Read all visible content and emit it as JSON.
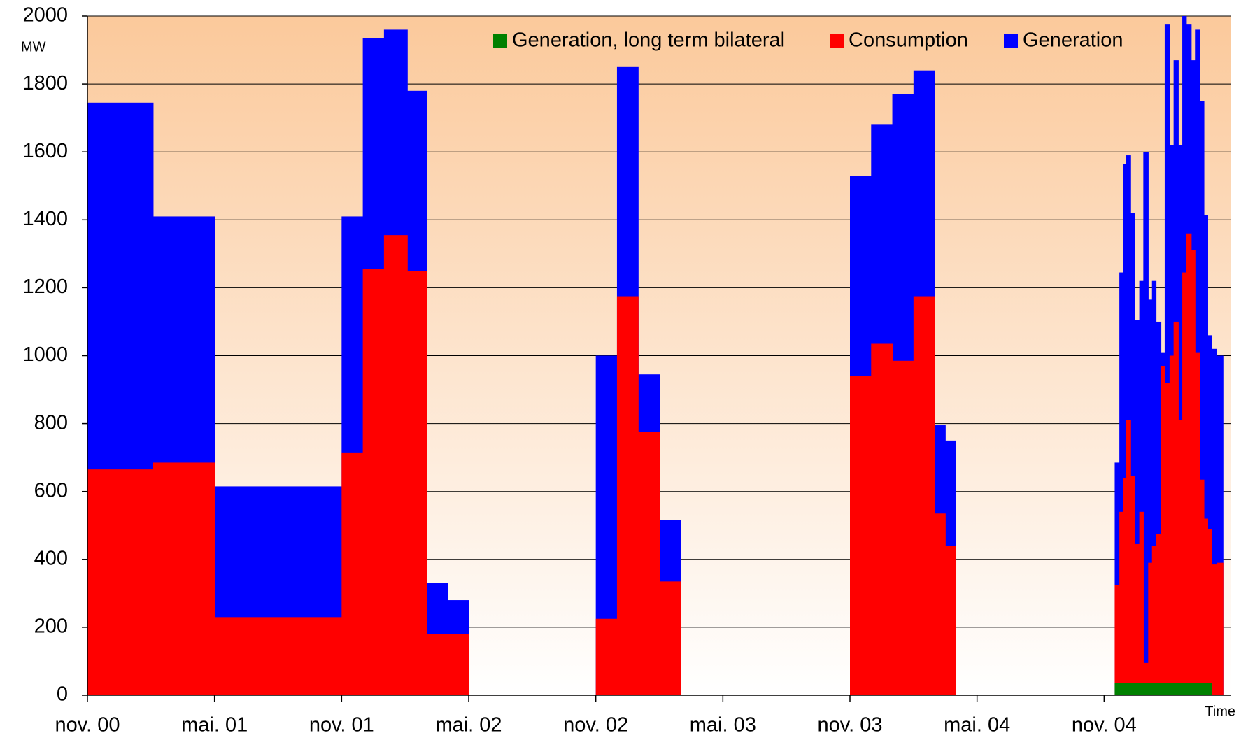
{
  "chart_data": {
    "type": "step-area",
    "y_unit": "MW",
    "x_label": "Time",
    "x": [
      0,
      3.1,
      6,
      12,
      13,
      14,
      15.1,
      16,
      17,
      18,
      24,
      25,
      26,
      27,
      28,
      36,
      37,
      38,
      39,
      40,
      40.5,
      41,
      48.5,
      48.72,
      48.91,
      49.02,
      49.25,
      49.44,
      49.66,
      49.85,
      50.08,
      50.26,
      50.45,
      50.68,
      50.86,
      51.09,
      51.28,
      51.5,
      51.69,
      51.88,
      52.11,
      52.29,
      52.52,
      52.71,
      52.89,
      53.08,
      53.31,
      53.61
    ],
    "series": [
      {
        "name": "Generation",
        "color": "#0000ff",
        "values": [
          1745,
          1410,
          615,
          1410,
          1935,
          1960,
          1780,
          330,
          280,
          null,
          1000,
          1850,
          945,
          515,
          null,
          1530,
          1680,
          1770,
          1840,
          795,
          750,
          null,
          685,
          1245,
          1565,
          1590,
          1420,
          1105,
          1220,
          1600,
          1165,
          1220,
          1100,
          1010,
          1975,
          1620,
          1870,
          1620,
          2000,
          1975,
          1870,
          1960,
          1750,
          1415,
          1060,
          1020,
          1000,
          null
        ]
      },
      {
        "name": "Consumption",
        "color": "#ff0000",
        "values": [
          665,
          685,
          230,
          715,
          1255,
          1355,
          1250,
          180,
          180,
          null,
          225,
          1175,
          775,
          335,
          null,
          940,
          1035,
          985,
          1175,
          535,
          440,
          null,
          325,
          540,
          640,
          810,
          645,
          445,
          540,
          95,
          390,
          440,
          475,
          970,
          920,
          1000,
          1100,
          810,
          1245,
          1360,
          1310,
          1010,
          635,
          520,
          490,
          385,
          390,
          null
        ]
      },
      {
        "name": "Generation, long term bilateral",
        "color": "#008000",
        "values": [
          null,
          null,
          null,
          null,
          null,
          null,
          null,
          null,
          null,
          null,
          null,
          null,
          null,
          null,
          null,
          null,
          null,
          null,
          null,
          null,
          null,
          null,
          35,
          35,
          35,
          35,
          35,
          35,
          35,
          35,
          35,
          35,
          35,
          35,
          35,
          35,
          35,
          35,
          35,
          35,
          35,
          35,
          35,
          35,
          35,
          null,
          null,
          null
        ]
      }
    ],
    "legend_order": [
      2,
      1,
      0
    ],
    "xlim": [
      0,
      54
    ],
    "xticks": [
      {
        "value": 0,
        "label": "nov. 00"
      },
      {
        "value": 6,
        "label": "mai. 01"
      },
      {
        "value": 12,
        "label": "nov. 01"
      },
      {
        "value": 18,
        "label": "mai. 02"
      },
      {
        "value": 24,
        "label": "nov. 02"
      },
      {
        "value": 30,
        "label": "mai. 03"
      },
      {
        "value": 36,
        "label": "nov. 03"
      },
      {
        "value": 42,
        "label": "mai. 04"
      },
      {
        "value": 48,
        "label": "nov. 04"
      }
    ],
    "ylim": [
      0,
      2000
    ],
    "yticks": [
      0,
      200,
      400,
      600,
      800,
      1000,
      1200,
      1400,
      1600,
      1800,
      2000
    ],
    "grid": true
  }
}
